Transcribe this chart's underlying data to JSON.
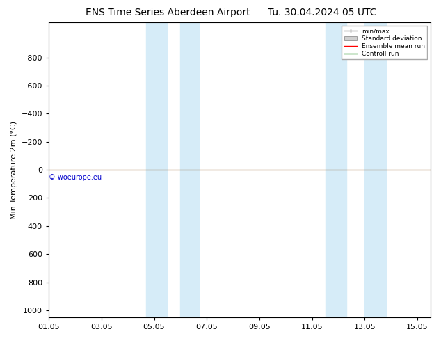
{
  "title_left": "ENS Time Series Aberdeen Airport",
  "title_right": "Tu. 30.04.2024 05 UTC",
  "ylabel": "Min Temperature 2m (°C)",
  "ylim": [
    -1050,
    1050
  ],
  "yticks": [
    -800,
    -600,
    -400,
    -200,
    0,
    200,
    400,
    600,
    800,
    1000
  ],
  "xtick_labels": [
    "01.05",
    "03.05",
    "05.05",
    "07.05",
    "09.05",
    "11.05",
    "13.05",
    "15.05"
  ],
  "xtick_positions": [
    0,
    2,
    4,
    6,
    8,
    10,
    12,
    14
  ],
  "xlim": [
    0,
    14.5
  ],
  "blue_bands": [
    [
      3.7,
      4.5
    ],
    [
      5.0,
      5.7
    ],
    [
      10.5,
      11.3
    ],
    [
      12.0,
      12.8
    ]
  ],
  "control_run_y": 0,
  "ensemble_mean_y": 0,
  "control_run_color": "#008000",
  "ensemble_mean_color": "#ff0000",
  "watermark": "© woeurope.eu",
  "watermark_color": "#0000cc",
  "legend_items": [
    "min/max",
    "Standard deviation",
    "Ensemble mean run",
    "Controll run"
  ],
  "background_color": "#ffffff",
  "plot_bg_color": "#ffffff",
  "band_color": "#d6ecf8",
  "band_alpha": 1.0,
  "title_fontsize": 10,
  "axis_fontsize": 8,
  "tick_fontsize": 8,
  "invert_yaxis": true
}
